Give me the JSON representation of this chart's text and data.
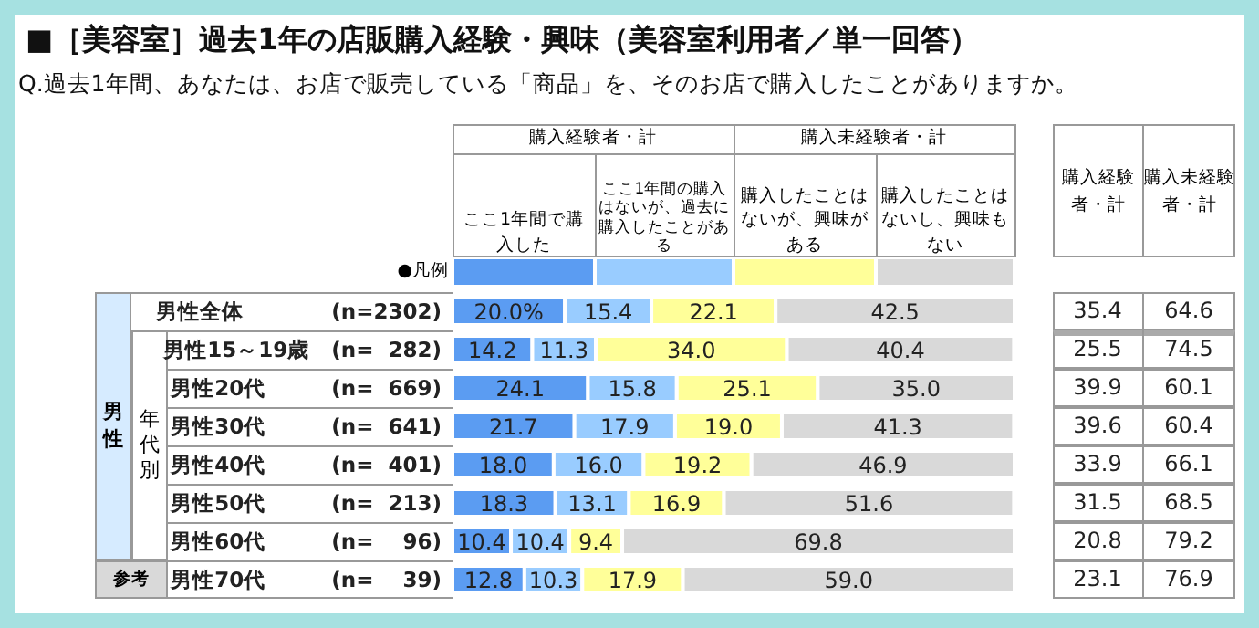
{
  "chart_data": {
    "type": "bar",
    "orientation": "horizontal",
    "stacked": true,
    "title": "■［美容室］過去1年の店販購入経験・興味（美容室利用者／単一回答）",
    "subtitle": "Q.過去1年間、あなたは、お店で販売している「商品」を、そのお店で購入したことがありますか。",
    "categories": [
      "男性全体　　　　(n=2302)",
      "男性15～19歳　(n=  282)",
      "男性20代　　　(n=  669)",
      "男性30代　　　(n=  641)",
      "男性40代　　　(n=  401)",
      "男性50代　　　(n=  213)",
      "男性60代　　　(n=    96)",
      "男性70代　　　(n=    39)"
    ],
    "series": [
      {
        "name": "ここ1年間で購入した",
        "color": "#5b9cf2",
        "values": [
          20.0,
          14.2,
          24.1,
          21.7,
          18.0,
          18.3,
          10.4,
          12.8
        ],
        "value_labels": [
          "20.0%",
          "14.2",
          "24.1",
          "21.7",
          "18.0",
          "18.3",
          "10.4",
          "12.8"
        ]
      },
      {
        "name": "ここ1年間の購入はないが、過去に購入したことがある",
        "color": "#99ccff",
        "values": [
          15.4,
          11.3,
          15.8,
          17.9,
          16.0,
          13.1,
          10.4,
          10.3
        ],
        "value_labels": [
          "15.4",
          "11.3",
          "15.8",
          "17.9",
          "16.0",
          "13.1",
          "10.4",
          "10.3"
        ]
      },
      {
        "name": "購入したことはないが、興味がある",
        "color": "#ffff99",
        "values": [
          22.1,
          34.0,
          25.1,
          19.0,
          19.2,
          16.9,
          9.4,
          17.9
        ],
        "value_labels": [
          "22.1",
          "34.0",
          "25.1",
          "19.0",
          "19.2",
          "16.9",
          "9.4",
          "17.9"
        ]
      },
      {
        "name": "購入したことはないし、興味もない",
        "color": "#d9d9d9",
        "values": [
          42.5,
          40.4,
          35.0,
          41.3,
          46.9,
          51.6,
          69.8,
          59.0
        ],
        "value_labels": [
          "42.5",
          "40.4",
          "35.0",
          "41.3",
          "46.9",
          "51.6",
          "69.8",
          "59.0"
        ]
      }
    ],
    "xlim": [
      0,
      100
    ],
    "tick_labels": "y",
    "legend": "top",
    "annotations": [
      "購入経験者・計",
      "購入未経験者・計",
      "●凡例",
      "男性",
      "年代別",
      "参考",
      "購入経験者・計",
      "購入未経験者・計",
      "35.4",
      "64.6",
      "25.5",
      "74.5",
      "39.9",
      "60.1",
      "39.6",
      "60.4",
      "33.9",
      "66.1",
      "31.5",
      "68.5",
      "20.8",
      "79.2",
      "23.1",
      "76.9"
    ]
  }
}
